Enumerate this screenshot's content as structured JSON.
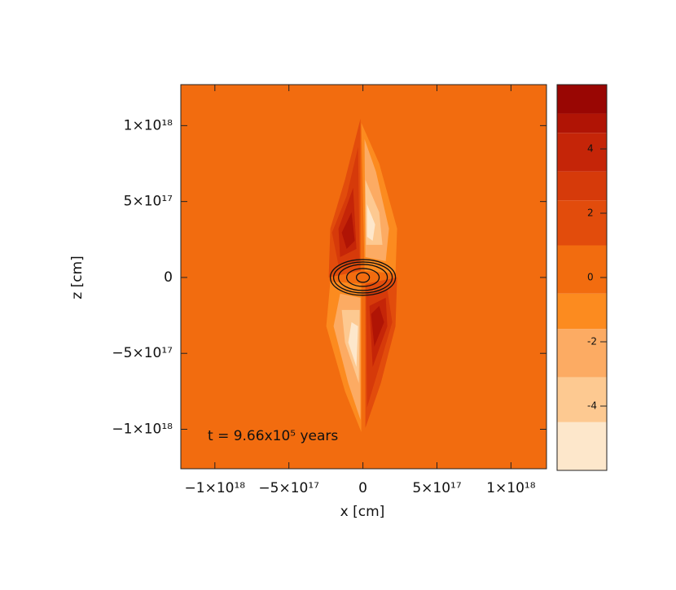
{
  "chart_data": {
    "type": "contour",
    "x_label": "x [cm]",
    "y_label": "z [cm]",
    "annotation": "t = 9.66x10⁵ years",
    "xlim": [
      -1.23e+18,
      1.24e+18
    ],
    "ylim": [
      -1.26e+18,
      1.27e+18
    ],
    "xticks": [
      {
        "value": -1e+18,
        "label": "−1×10¹⁸"
      },
      {
        "value": -5e+17,
        "label": "−5×10¹⁷"
      },
      0,
      {
        "value": 5e+17,
        "label": "5×10¹⁷"
      },
      {
        "value": 1e+18,
        "label": "1×10¹⁸"
      }
    ],
    "yticks": [
      {
        "value": -1e+18,
        "label": "−1×10¹⁸"
      },
      {
        "value": -5e+17,
        "label": "−5×10¹⁷"
      },
      0,
      {
        "value": 5e+17,
        "label": "5×10¹⁷"
      },
      {
        "value": 1e+18,
        "label": "1×10¹⁸"
      }
    ],
    "colorbar_levels": [
      -6.0,
      -4.5,
      -3.1,
      -1.6,
      -0.5,
      1.0,
      2.4,
      3.3,
      4.5,
      5.1,
      6.0
    ],
    "colorbar_colors": [
      "#fde7cb",
      "#fdc991",
      "#fcab63",
      "#fc8b1f",
      "#f26c0f",
      "#e24c0c",
      "#d63a0a",
      "#c52508",
      "#b01405",
      "#990603"
    ],
    "colorbar_ticks": [
      -4,
      -2,
      0,
      2,
      4
    ]
  }
}
